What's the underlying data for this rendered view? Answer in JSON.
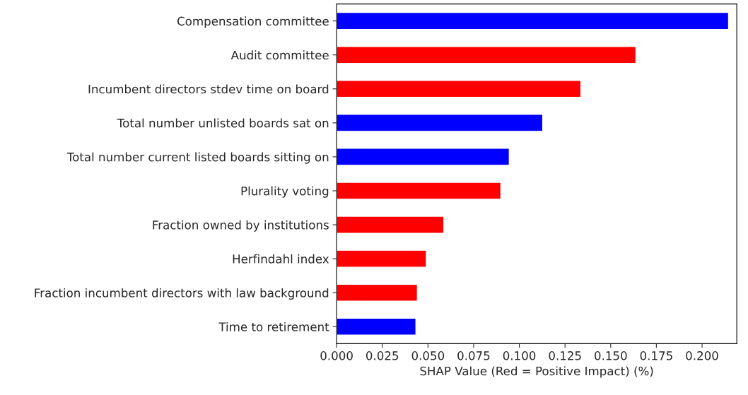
{
  "chart_data": {
    "type": "bar",
    "orientation": "horizontal",
    "xlabel": "SHAP Value (Red = Positive Impact) (%)",
    "categories": [
      "Compensation committee",
      "Audit committee",
      "Incumbent directors stdev time on board",
      "Total number unlisted boards sat on",
      "Total number current listed boards sitting on",
      "Plurality voting",
      "Fraction owned by institutions",
      "Herfindahl index",
      "Fraction incumbent directors with law background",
      "Time to retirement"
    ],
    "values": [
      0.2145,
      0.1638,
      0.1337,
      0.1128,
      0.0945,
      0.0899,
      0.0587,
      0.0491,
      0.0442,
      0.0434
    ],
    "colors": [
      "#0000ff",
      "#ff0000",
      "#ff0000",
      "#0000ff",
      "#0000ff",
      "#ff0000",
      "#ff0000",
      "#ff0000",
      "#ff0000",
      "#0000ff"
    ],
    "xlim": [
      0,
      0.219
    ],
    "xticks": [
      {
        "value": 0,
        "label": "0.000"
      },
      {
        "value": 0.025,
        "label": "0.025"
      },
      {
        "value": 0.05,
        "label": "0.050"
      },
      {
        "value": 0.075,
        "label": "0.075"
      },
      {
        "value": 0.1,
        "label": "0.100"
      },
      {
        "value": 0.125,
        "label": "0.125"
      },
      {
        "value": 0.15,
        "label": "0.150"
      },
      {
        "value": 0.175,
        "label": "0.175"
      },
      {
        "value": 0.2,
        "label": "0.200"
      }
    ],
    "grid": false,
    "legend": false
  }
}
